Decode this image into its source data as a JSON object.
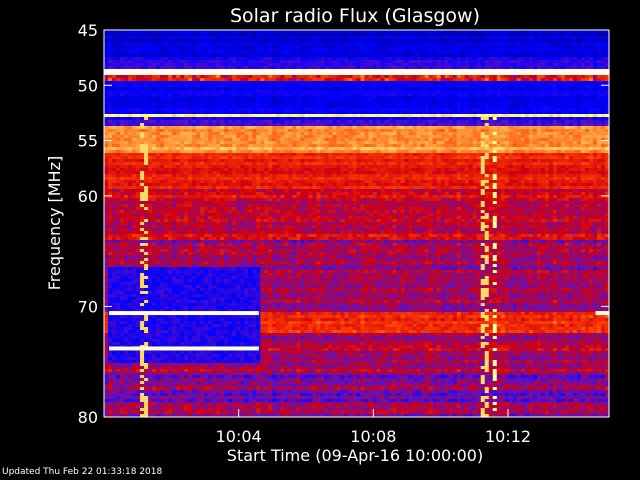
{
  "chart_data": {
    "type": "heatmap",
    "title": "Solar radio Flux (Glasgow)",
    "xlabel": "Start Time (09-Apr-16 10:00:00)",
    "ylabel": "Frequency [MHz]",
    "xlim_minutes": [
      0,
      15
    ],
    "ylim_mhz": [
      45,
      80
    ],
    "y_ticks": [
      45,
      50,
      55,
      60,
      70,
      80
    ],
    "x_ticks": [
      {
        "minute": 4,
        "label": "10:04"
      },
      {
        "minute": 8,
        "label": "10:08"
      },
      {
        "minute": 12,
        "label": "10:12"
      }
    ],
    "colormap": [
      "#000060",
      "#0000ff",
      "#6010c0",
      "#d00010",
      "#ff4000",
      "#ffff80",
      "#ffffff"
    ],
    "bands": [
      {
        "from": 45.0,
        "to": 47.5,
        "level": 0.12,
        "vary": 0.06
      },
      {
        "from": 47.5,
        "to": 48.6,
        "level": 0.22,
        "vary": 0.1
      },
      {
        "from": 48.6,
        "to": 49.2,
        "level": 0.98,
        "vary": 0.02
      },
      {
        "from": 49.2,
        "to": 49.6,
        "level": 0.55,
        "vary": 0.25
      },
      {
        "from": 49.6,
        "to": 52.5,
        "level": 0.16,
        "vary": 0.06
      },
      {
        "from": 52.5,
        "to": 52.9,
        "level": 0.85,
        "vary": 0.05
      },
      {
        "from": 52.9,
        "to": 53.6,
        "level": 0.25,
        "vary": 0.12
      },
      {
        "from": 53.6,
        "to": 56.0,
        "level": 0.74,
        "vary": 0.06
      },
      {
        "from": 56.0,
        "to": 59.5,
        "level": 0.58,
        "vary": 0.1
      },
      {
        "from": 59.5,
        "to": 64.0,
        "level": 0.5,
        "vary": 0.14
      },
      {
        "from": 64.0,
        "to": 66.5,
        "level": 0.4,
        "vary": 0.16
      },
      {
        "from": 66.5,
        "to": 70.5,
        "level": 0.42,
        "vary": 0.14
      },
      {
        "from": 70.5,
        "to": 72.5,
        "level": 0.62,
        "vary": 0.12
      },
      {
        "from": 72.5,
        "to": 76.0,
        "level": 0.45,
        "vary": 0.14
      },
      {
        "from": 76.0,
        "to": 80.0,
        "level": 0.38,
        "vary": 0.16
      }
    ],
    "blue_region": {
      "from_minute": 0.15,
      "to_minute": 4.6,
      "from_mhz": 66.5,
      "to_mhz": 75.0,
      "level": 0.22
    },
    "hot_lines": [
      {
        "mhz": 70.6,
        "from_minute": 0.15,
        "to_minute": 4.6,
        "level": 0.99
      },
      {
        "mhz": 73.8,
        "from_minute": 0.15,
        "to_minute": 4.6,
        "level": 0.93
      },
      {
        "mhz": 70.6,
        "from_minute": 14.6,
        "to_minute": 15.0,
        "level": 0.95
      }
    ],
    "vertical_features": [
      {
        "minute": 1.2,
        "level": 0.8
      },
      {
        "minute": 11.3,
        "level": 0.8
      },
      {
        "minute": 11.6,
        "level": 0.85
      }
    ]
  },
  "footer": {
    "updated": "Updated Thu Feb 22 01:33:18 2018"
  }
}
